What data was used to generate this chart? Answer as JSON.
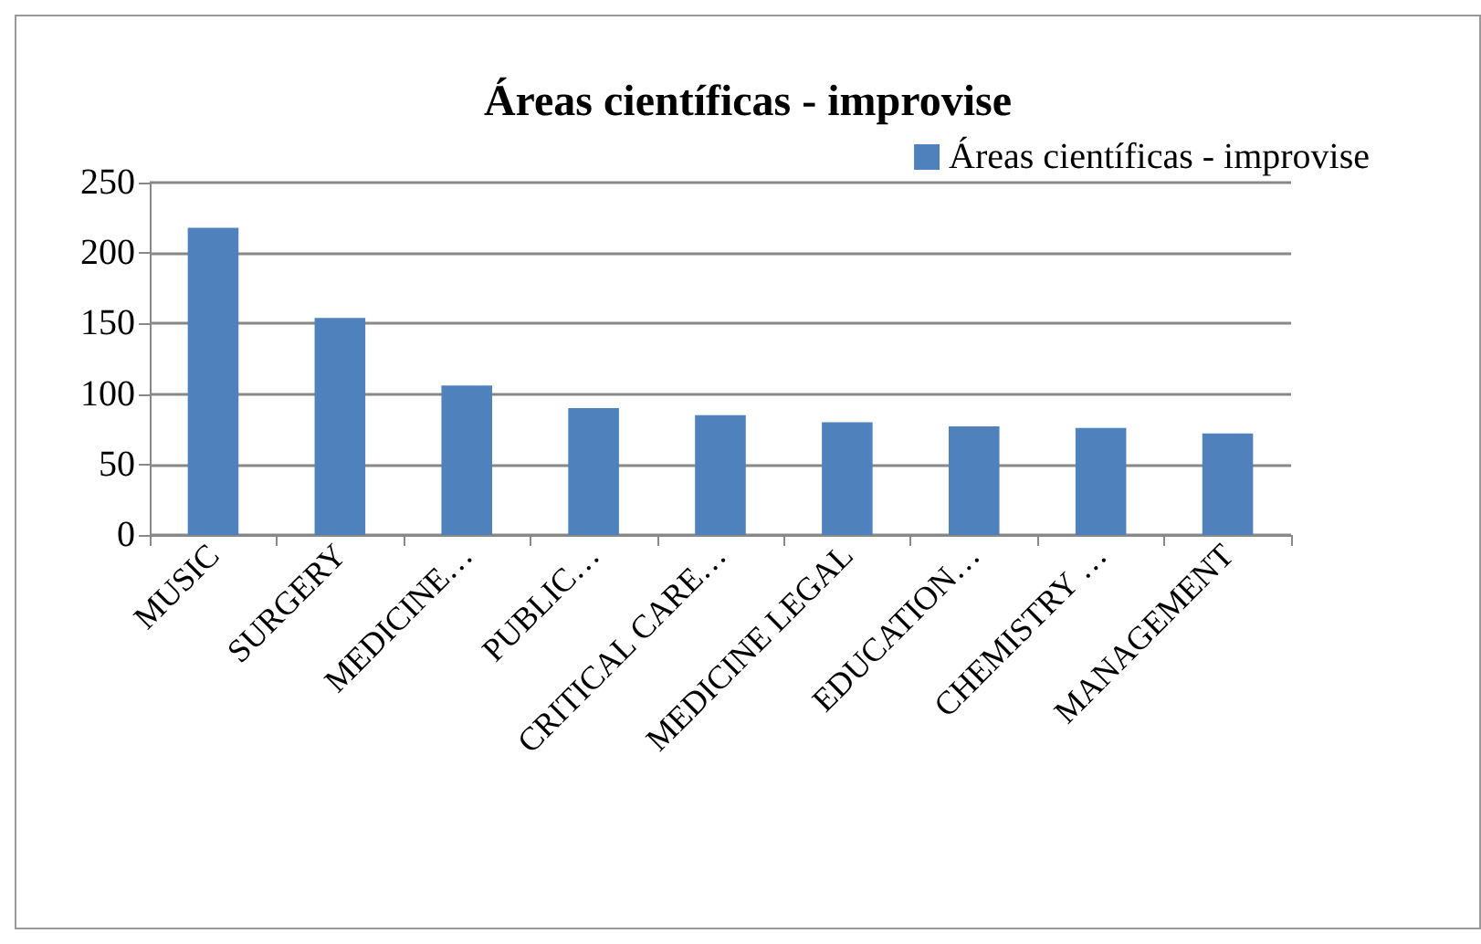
{
  "chart_data": {
    "type": "bar",
    "title": "Áreas científicas - improvise",
    "categories": [
      "MUSIC",
      "SURGERY",
      "MEDICINE…",
      "PUBLIC…",
      "CRITICAL CARE…",
      "MEDICINE LEGAL",
      "EDUCATION…",
      "CHEMISTRY …",
      "MANAGEMENT"
    ],
    "series": [
      {
        "name": "Áreas científicas - improvise",
        "color": "#4f81bd",
        "values": [
          218,
          154,
          106,
          90,
          85,
          80,
          77,
          76,
          72
        ]
      }
    ],
    "ylim": [
      0,
      250
    ],
    "yticks": [
      0,
      50,
      100,
      150,
      200,
      250
    ],
    "grid": "y",
    "legend": "top right"
  }
}
